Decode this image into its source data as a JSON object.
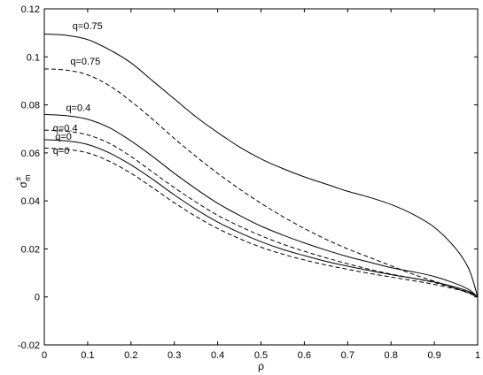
{
  "chart_data": {
    "type": "line",
    "xlabel": "ρ",
    "ylabel": "σ",
    "ylabel_sup": "±",
    "ylabel_sub": "m",
    "xlim": [
      0,
      1
    ],
    "ylim": [
      -0.02,
      0.12
    ],
    "xticks": [
      "0",
      "0.1",
      "0.2",
      "0.3",
      "0.4",
      "0.5",
      "0.6",
      "0.7",
      "0.8",
      "0.9",
      "1"
    ],
    "yticks": [
      "-0.02",
      "0",
      "0.02",
      "0.04",
      "0.06",
      "0.08",
      "0.1",
      "0.12"
    ],
    "grid": false,
    "x": [
      0,
      0.05,
      0.1,
      0.15,
      0.2,
      0.25,
      0.3,
      0.35,
      0.4,
      0.45,
      0.5,
      0.55,
      0.6,
      0.65,
      0.7,
      0.75,
      0.8,
      0.85,
      0.9,
      0.95,
      0.98,
      1.0
    ],
    "series": [
      {
        "style": "solid",
        "values": [
          0.1095,
          0.109,
          0.1072,
          0.103,
          0.0975,
          0.09,
          0.0825,
          0.075,
          0.0685,
          0.0625,
          0.0575,
          0.0535,
          0.05,
          0.047,
          0.044,
          0.0415,
          0.0385,
          0.0345,
          0.029,
          0.02,
          0.0115,
          0.0
        ]
      },
      {
        "style": "dashed",
        "values": [
          0.095,
          0.0945,
          0.0925,
          0.088,
          0.0815,
          0.074,
          0.066,
          0.0585,
          0.0515,
          0.045,
          0.039,
          0.0335,
          0.0285,
          0.024,
          0.02,
          0.0165,
          0.013,
          0.0095,
          0.0065,
          0.0035,
          0.0015,
          0.0
        ]
      },
      {
        "style": "solid",
        "values": [
          0.076,
          0.0755,
          0.074,
          0.0705,
          0.065,
          0.0585,
          0.0515,
          0.045,
          0.039,
          0.034,
          0.0295,
          0.0258,
          0.0225,
          0.0195,
          0.0168,
          0.0145,
          0.0122,
          0.0105,
          0.0085,
          0.0055,
          0.003,
          0.0
        ]
      },
      {
        "style": "dashed",
        "values": [
          0.0695,
          0.069,
          0.0675,
          0.064,
          0.0585,
          0.052,
          0.0455,
          0.0395,
          0.034,
          0.0295,
          0.0255,
          0.022,
          0.019,
          0.0163,
          0.0138,
          0.0115,
          0.0095,
          0.0078,
          0.006,
          0.0035,
          0.0018,
          0.0
        ]
      },
      {
        "style": "solid",
        "values": [
          0.0655,
          0.065,
          0.0635,
          0.06,
          0.055,
          0.049,
          0.0425,
          0.0365,
          0.0312,
          0.0268,
          0.023,
          0.0198,
          0.0172,
          0.0148,
          0.0128,
          0.011,
          0.0093,
          0.0078,
          0.0062,
          0.004,
          0.0022,
          0.0
        ]
      },
      {
        "style": "dashed",
        "values": [
          0.062,
          0.0615,
          0.06,
          0.0565,
          0.0515,
          0.0455,
          0.0392,
          0.0335,
          0.0285,
          0.0243,
          0.0207,
          0.0178,
          0.0154,
          0.0133,
          0.0115,
          0.0098,
          0.0083,
          0.0068,
          0.0052,
          0.0032,
          0.0017,
          0.0
        ]
      }
    ],
    "annotations": [
      {
        "text": "q=0.75",
        "x": 0.065,
        "y": 0.1115
      },
      {
        "text": "q=0.75",
        "x": 0.06,
        "y": 0.0968
      },
      {
        "text": "q=0.4",
        "x": 0.05,
        "y": 0.0775
      },
      {
        "text": "q=0.4",
        "x": 0.02,
        "y": 0.069
      },
      {
        "text": "q=0",
        "x": 0.025,
        "y": 0.0655
      },
      {
        "text": "q=0",
        "x": 0.02,
        "y": 0.0595
      }
    ]
  }
}
